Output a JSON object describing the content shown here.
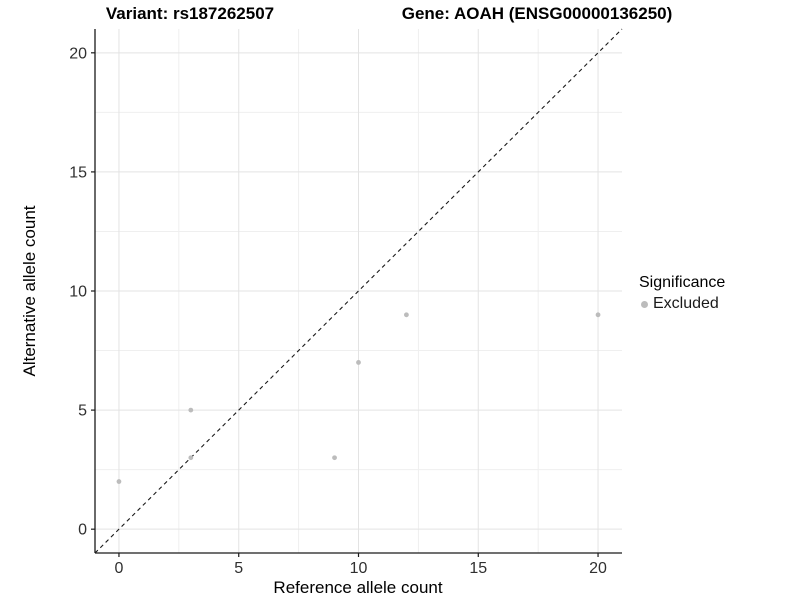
{
  "chart_data": {
    "type": "scatter",
    "titles": [
      "Variant: rs187262507",
      "Gene: AOAH (ENSG00000136250)"
    ],
    "xlabel": "Reference allele count",
    "ylabel": "Alternative allele count",
    "xlim": [
      -1,
      21
    ],
    "ylim": [
      -1,
      21
    ],
    "xticks": [
      0,
      5,
      10,
      15,
      20
    ],
    "yticks": [
      0,
      5,
      10,
      15,
      20
    ],
    "minor_xticks": [
      2.5,
      7.5,
      12.5,
      17.5
    ],
    "minor_yticks": [
      2.5,
      7.5,
      12.5,
      17.5
    ],
    "grid": "major and minor gridlines, white background",
    "series": [
      {
        "name": "Excluded",
        "color": "#bcbcbc",
        "points": [
          [
            0,
            2
          ],
          [
            3,
            3
          ],
          [
            3,
            5
          ],
          [
            9,
            3
          ],
          [
            10,
            7
          ],
          [
            12,
            9
          ],
          [
            20,
            9
          ]
        ]
      }
    ],
    "reference_line": {
      "type": "identity",
      "slope": 1,
      "intercept": 0,
      "style": "dashed",
      "color": "#1a1a1a"
    },
    "legend": {
      "title": "Significance",
      "position": "right",
      "items": [
        {
          "label": "Excluded",
          "color": "#bcbcbc"
        }
      ]
    },
    "colors": {
      "point": "#bcbcbc",
      "grid_major": "#e3e3e3",
      "grid_minor": "#efefef",
      "axis_line": "#1a1a1a",
      "tick_text": "#303030"
    }
  }
}
